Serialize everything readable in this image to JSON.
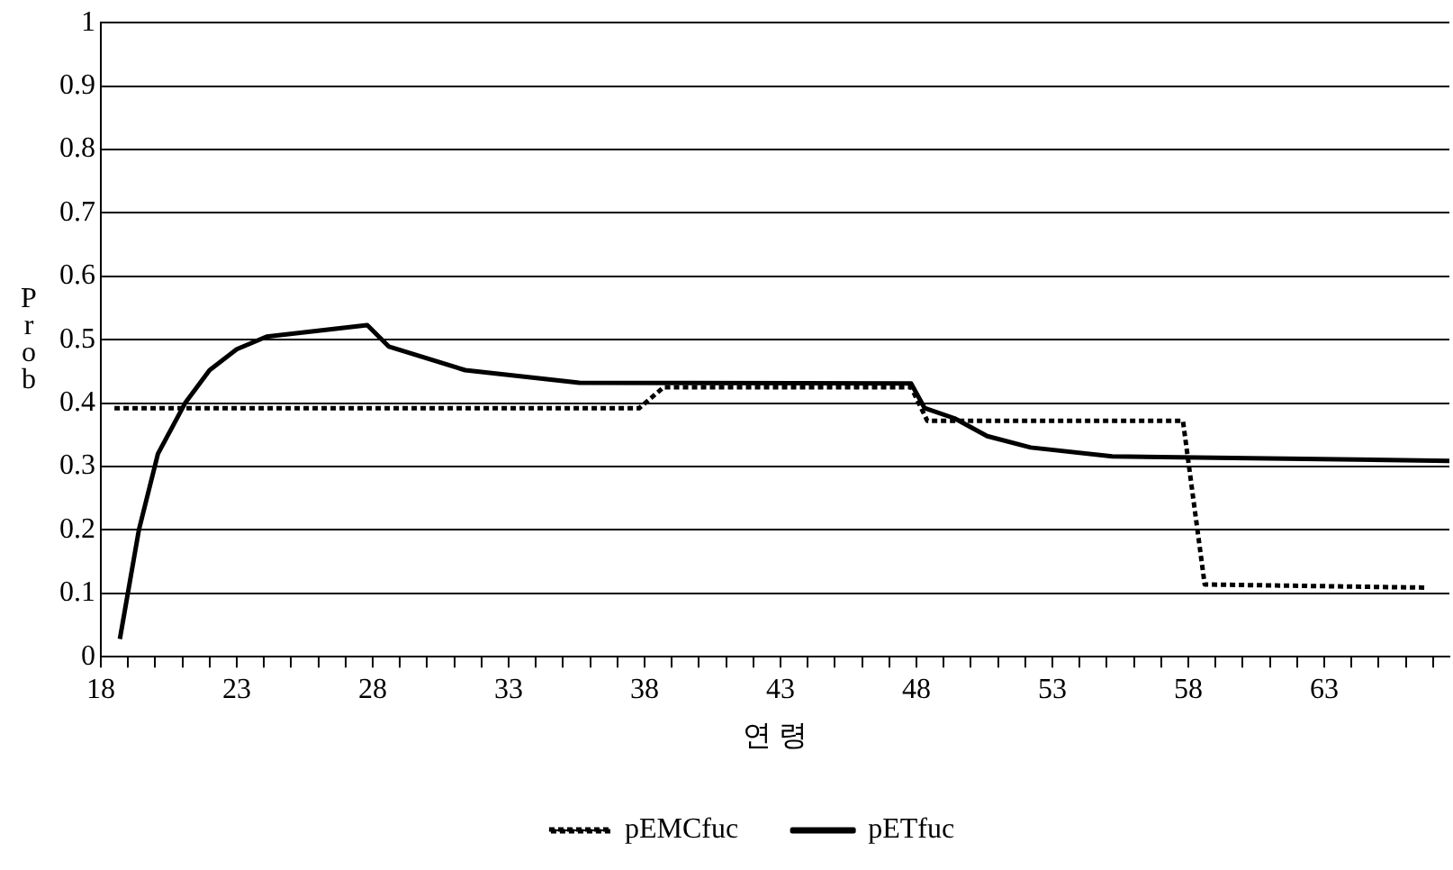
{
  "chart_data": {
    "type": "line",
    "xlabel": "연 령",
    "ylabel": "Prob",
    "xlim": [
      18,
      67.6
    ],
    "xticks": [
      18,
      {
        "value": 19,
        "label": null
      },
      {
        "value": 20,
        "label": null
      },
      {
        "value": 21,
        "label": null
      },
      {
        "value": 22,
        "label": null
      },
      23,
      {
        "value": 24,
        "label": null
      },
      {
        "value": 25,
        "label": null
      },
      {
        "value": 26,
        "label": null
      },
      {
        "value": 27,
        "label": null
      },
      28,
      {
        "value": 29,
        "label": null
      },
      {
        "value": 30,
        "label": null
      },
      {
        "value": 31,
        "label": null
      },
      {
        "value": 32,
        "label": null
      },
      33,
      {
        "value": 34,
        "label": null
      },
      {
        "value": 35,
        "label": null
      },
      {
        "value": 36,
        "label": null
      },
      {
        "value": 37,
        "label": null
      },
      38,
      {
        "value": 39,
        "label": null
      },
      {
        "value": 40,
        "label": null
      },
      {
        "value": 41,
        "label": null
      },
      {
        "value": 42,
        "label": null
      },
      43,
      {
        "value": 44,
        "label": null
      },
      {
        "value": 45,
        "label": null
      },
      {
        "value": 46,
        "label": null
      },
      {
        "value": 47,
        "label": null
      },
      48,
      {
        "value": 49,
        "label": null
      },
      {
        "value": 50,
        "label": null
      },
      {
        "value": 51,
        "label": null
      },
      {
        "value": 52,
        "label": null
      },
      53,
      {
        "value": 54,
        "label": null
      },
      {
        "value": 55,
        "label": null
      },
      {
        "value": 56,
        "label": null
      },
      {
        "value": 57,
        "label": null
      },
      58,
      {
        "value": 59,
        "label": null
      },
      {
        "value": 60,
        "label": null
      },
      {
        "value": 61,
        "label": null
      },
      {
        "value": 62,
        "label": null
      },
      63,
      {
        "value": 64,
        "label": null
      },
      {
        "value": 65,
        "label": null
      },
      {
        "value": 66,
        "label": null
      },
      {
        "value": 67,
        "label": null
      }
    ],
    "ylim": [
      0,
      1
    ],
    "yticks": [
      0,
      0.1,
      0.2,
      0.3,
      0.4,
      0.5,
      0.6,
      0.7,
      0.8,
      0.9,
      1
    ],
    "grid": "y",
    "legend": "bottom",
    "marker": "none",
    "series": [
      {
        "name": "pEMCfuc",
        "color": "#000000",
        "line_style": "dotted",
        "x": [
          18.5,
          37.8,
          38.7,
          47.8,
          48.4,
          57.8,
          58.6,
          66.7
        ],
        "values": [
          0.392,
          0.392,
          0.425,
          0.425,
          0.372,
          0.372,
          0.114,
          0.109
        ]
      },
      {
        "name": "pETfuc",
        "color": "#000000",
        "line_style": "solid",
        "x": [
          18.7,
          19.4,
          20.1,
          21.1,
          22.0,
          23.0,
          24.1,
          27.8,
          28.6,
          31.4,
          35.6,
          47.8,
          48.3,
          49.4,
          50.6,
          52.2,
          55.2,
          67.6
        ],
        "values": [
          0.028,
          0.2,
          0.32,
          0.4,
          0.452,
          0.485,
          0.505,
          0.523,
          0.489,
          0.452,
          0.432,
          0.431,
          0.392,
          0.376,
          0.348,
          0.33,
          0.316,
          0.309
        ]
      }
    ]
  }
}
